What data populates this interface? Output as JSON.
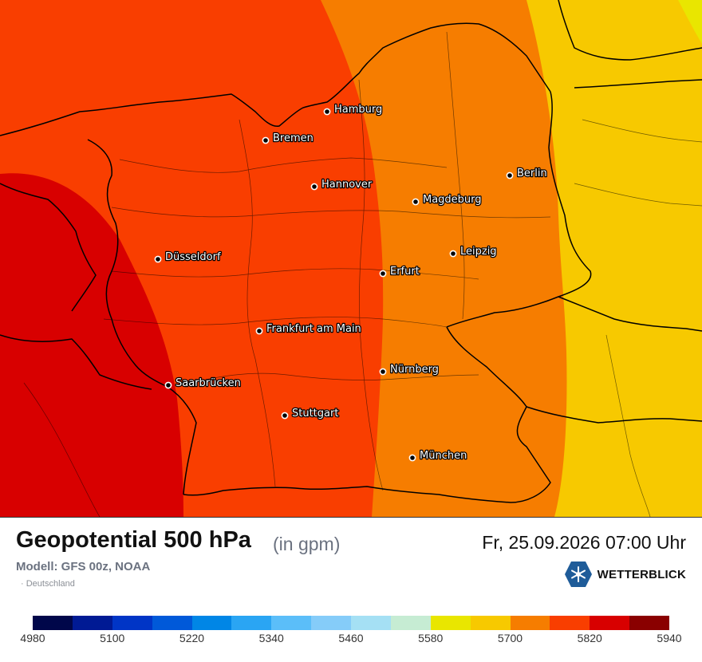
{
  "map": {
    "colors": {
      "band_5820": "#d80000",
      "band_5760": "#f93e00",
      "band_5700": "#f67d00",
      "band_5640": "#f7c900",
      "band_5580": "#e9e600",
      "borders": "#000000"
    },
    "cities": [
      {
        "name": "Hamburg"
      },
      {
        "name": "Bremen"
      },
      {
        "name": "Berlin"
      },
      {
        "name": "Hannover"
      },
      {
        "name": "Magdeburg"
      },
      {
        "name": "Düsseldorf"
      },
      {
        "name": "Leipzig"
      },
      {
        "name": "Erfurt"
      },
      {
        "name": "Frankfurt am Main"
      },
      {
        "name": "Nürnberg"
      },
      {
        "name": "Saarbrücken"
      },
      {
        "name": "Stuttgart"
      },
      {
        "name": "München"
      }
    ]
  },
  "header": {
    "title": "Geopotential 500 hPa",
    "unit": "(in gpm)",
    "datetime": "Fr, 25.09.2026 07:00 Uhr",
    "model": "Modell: GFS 00z, NOAA",
    "region": "· Deutschland"
  },
  "brand": {
    "name": "WETTERBLICK",
    "icon": "snowflake-hexagon-icon",
    "color": "#1f5c99"
  },
  "legend": {
    "colors": [
      "#00074a",
      "#001a94",
      "#0035c6",
      "#0059d9",
      "#0086e6",
      "#2aa5f3",
      "#5bbef9",
      "#85ccf9",
      "#a5e0f4",
      "#c6ecd3",
      "#e9e600",
      "#f7c900",
      "#f67d00",
      "#f93e00",
      "#d80000",
      "#8a0000"
    ],
    "ticks": [
      "4980",
      "5100",
      "5220",
      "5340",
      "5460",
      "5580",
      "5700",
      "5820",
      "5940"
    ]
  }
}
